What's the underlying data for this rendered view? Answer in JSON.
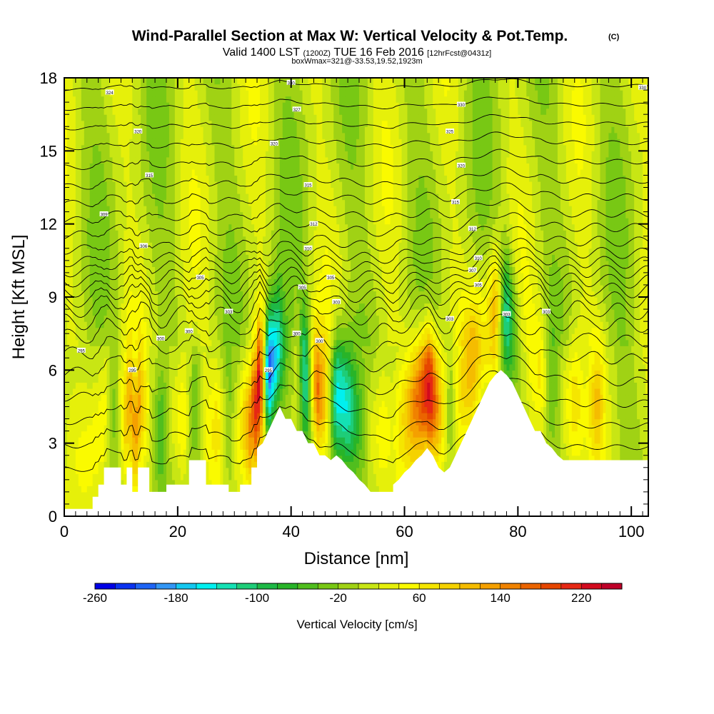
{
  "chart_data": {
    "type": "heatmap",
    "title": "Wind-Parallel Section at Max W: Vertical Velocity & Pot.Temp.",
    "title_mark": "(C)",
    "subtitle": {
      "valid_prefix": "Valid 1400 LST",
      "utc": "(1200Z)",
      "date": "TUE 16 Feb 2016",
      "forecast": "[12hrFcst@0431z]"
    },
    "box_label": "boxWmax=321@-33.53,19.52,1923m",
    "xlabel": "Distance [nm]",
    "ylabel": "Height [Kft MSL]",
    "xlim": [
      0,
      103
    ],
    "ylim": [
      0,
      18
    ],
    "x_ticks": [
      0,
      20,
      40,
      60,
      80,
      100
    ],
    "y_ticks": [
      0,
      3,
      6,
      9,
      12,
      15,
      18
    ],
    "colorbar": {
      "label": "Vertical Velocity [cm/s]",
      "min": -260,
      "max": 260,
      "step": 20,
      "tick_labels": [
        "-260",
        "-180",
        "-100",
        "-20",
        "60",
        "140",
        "220"
      ],
      "tick_values": [
        -260,
        -180,
        -100,
        -20,
        60,
        140,
        220
      ],
      "colors": [
        "#0000e6",
        "#0a32f0",
        "#1e64f5",
        "#3296f5",
        "#14c8f0",
        "#00f0f0",
        "#14e1b4",
        "#1ecd78",
        "#1eb946",
        "#28b428",
        "#50be1e",
        "#78c814",
        "#a0d214",
        "#c8e614",
        "#e6f00a",
        "#fafa00",
        "#f5e600",
        "#f5d200",
        "#f5bc00",
        "#f5a000",
        "#f08200",
        "#eb6400",
        "#e64600",
        "#e62814",
        "#d20a1e",
        "#be0028"
      ]
    },
    "terrain": [
      [
        0,
        0.3
      ],
      [
        5,
        0.3
      ],
      [
        5,
        0.8
      ],
      [
        6,
        0.8
      ],
      [
        6,
        1.3
      ],
      [
        7,
        1.3
      ],
      [
        7,
        2
      ],
      [
        10,
        2
      ],
      [
        10,
        1.3
      ],
      [
        11,
        1.3
      ],
      [
        11,
        2
      ],
      [
        12,
        2
      ],
      [
        12,
        1.0
      ],
      [
        13,
        1.0
      ],
      [
        13,
        2
      ],
      [
        15,
        2
      ],
      [
        15,
        1.0
      ],
      [
        18,
        1.0
      ],
      [
        18,
        1.3
      ],
      [
        22,
        1.3
      ],
      [
        22,
        2.3
      ],
      [
        25,
        2.3
      ],
      [
        25,
        1.3
      ],
      [
        29,
        1.3
      ],
      [
        29,
        1.0
      ],
      [
        31,
        1.0
      ],
      [
        31,
        1.3
      ],
      [
        33,
        1.3
      ],
      [
        33,
        2
      ],
      [
        34,
        2
      ],
      [
        34,
        2.8
      ],
      [
        35,
        3
      ],
      [
        36,
        3.5
      ],
      [
        37,
        4
      ],
      [
        38,
        4.5
      ],
      [
        39,
        4
      ],
      [
        40,
        4
      ],
      [
        41,
        3.5
      ],
      [
        42,
        3.5
      ],
      [
        43,
        3
      ],
      [
        44,
        3
      ],
      [
        45,
        2.5
      ],
      [
        46,
        2.5
      ],
      [
        47,
        2.3
      ],
      [
        48,
        2.5
      ],
      [
        49,
        2.3
      ],
      [
        50,
        2
      ],
      [
        51,
        1.8
      ],
      [
        52,
        1.5
      ],
      [
        53,
        1.3
      ],
      [
        54,
        1.0
      ],
      [
        58,
        1.0
      ],
      [
        58,
        1.3
      ],
      [
        59,
        1.5
      ],
      [
        60,
        1.8
      ],
      [
        61,
        2
      ],
      [
        62,
        2.3
      ],
      [
        63,
        2.5
      ],
      [
        64,
        2.8
      ],
      [
        65,
        2.5
      ],
      [
        66,
        2
      ],
      [
        67,
        1.8
      ],
      [
        68,
        2
      ],
      [
        69,
        2.5
      ],
      [
        70,
        3
      ],
      [
        71,
        3.5
      ],
      [
        72,
        4
      ],
      [
        73,
        4.5
      ],
      [
        74,
        5
      ],
      [
        75,
        5.5
      ],
      [
        76,
        5.8
      ],
      [
        77,
        6
      ],
      [
        78,
        5.8
      ],
      [
        79,
        5.5
      ],
      [
        80,
        5
      ],
      [
        81,
        4.5
      ],
      [
        82,
        4
      ],
      [
        83,
        3.5
      ],
      [
        84,
        3.5
      ],
      [
        85,
        3
      ],
      [
        86,
        2.8
      ],
      [
        87,
        2.5
      ],
      [
        88,
        2.3
      ],
      [
        103,
        2.3
      ]
    ],
    "columns": [
      {
        "x": 0,
        "w": 0
      },
      {
        "x": 4,
        "w": 20
      },
      {
        "x": 7,
        "w": 50
      },
      {
        "x": 9,
        "w": -40
      },
      {
        "x": 11,
        "w": 90
      },
      {
        "x": 13,
        "w": 110
      },
      {
        "x": 15,
        "w": 10
      },
      {
        "x": 17,
        "w": -60
      },
      {
        "x": 19,
        "w": 40
      },
      {
        "x": 21,
        "w": 80
      },
      {
        "x": 23,
        "w": -50
      },
      {
        "x": 25,
        "w": 30
      },
      {
        "x": 27,
        "w": 70
      },
      {
        "x": 29,
        "w": -20
      },
      {
        "x": 31,
        "w": 60
      },
      {
        "x": 33,
        "w": 150
      },
      {
        "x": 34.5,
        "w": 230
      },
      {
        "x": 36,
        "w": -250
      },
      {
        "x": 37.5,
        "w": -180
      },
      {
        "x": 39,
        "w": -60
      },
      {
        "x": 41,
        "w": 20
      },
      {
        "x": 42.5,
        "w": -150
      },
      {
        "x": 44.5,
        "w": 160
      },
      {
        "x": 46,
        "w": 90
      },
      {
        "x": 48,
        "w": -170
      },
      {
        "x": 50,
        "w": -140
      },
      {
        "x": 52,
        "w": -40
      },
      {
        "x": 54,
        "w": 40
      },
      {
        "x": 56,
        "w": 60
      },
      {
        "x": 58,
        "w": 20
      },
      {
        "x": 60,
        "w": 70
      },
      {
        "x": 62,
        "w": 150
      },
      {
        "x": 64.5,
        "w": 240
      },
      {
        "x": 66,
        "w": 120
      },
      {
        "x": 68,
        "w": -40
      },
      {
        "x": 70,
        "w": 50
      },
      {
        "x": 72,
        "w": 100
      },
      {
        "x": 74,
        "w": 60
      },
      {
        "x": 76,
        "w": 130
      },
      {
        "x": 78,
        "w": -150
      },
      {
        "x": 80,
        "w": -40
      },
      {
        "x": 82,
        "w": 30
      },
      {
        "x": 84,
        "w": 70
      },
      {
        "x": 86,
        "w": -30
      },
      {
        "x": 88,
        "w": 40
      },
      {
        "x": 90,
        "w": 80
      },
      {
        "x": 92,
        "w": 20
      },
      {
        "x": 94,
        "w": 90
      },
      {
        "x": 96,
        "w": 10
      },
      {
        "x": 99,
        "w": -20
      },
      {
        "x": 103,
        "w": 0
      }
    ],
    "isentrope_levels": [
      1.8,
      2.8,
      3.8,
      4.8,
      5.8,
      6.6,
      7.3,
      7.9,
      8.4,
      8.8,
      9.2,
      9.6,
      10.0,
      10.4,
      10.9,
      11.5,
      12.1,
      12.8,
      13.5,
      14.3,
      15.1,
      15.9,
      16.7,
      17.5
    ],
    "isentrope_labels": [
      {
        "x": 7,
        "y": 12.4,
        "text": "309"
      },
      {
        "x": 14,
        "y": 11.1,
        "text": "306"
      },
      {
        "x": 3,
        "y": 6.8,
        "text": "295"
      },
      {
        "x": 12,
        "y": 6.0,
        "text": "295"
      },
      {
        "x": 17,
        "y": 7.3,
        "text": "300"
      },
      {
        "x": 22,
        "y": 7.6,
        "text": "300"
      },
      {
        "x": 24,
        "y": 9.8,
        "text": "305"
      },
      {
        "x": 29,
        "y": 8.4,
        "text": "303"
      },
      {
        "x": 15,
        "y": 14.0,
        "text": "315"
      },
      {
        "x": 13,
        "y": 15.8,
        "text": "320"
      },
      {
        "x": 8,
        "y": 17.4,
        "text": "324"
      },
      {
        "x": 37,
        "y": 15.3,
        "text": "320"
      },
      {
        "x": 41,
        "y": 16.7,
        "text": "327"
      },
      {
        "x": 40,
        "y": 17.8,
        "text": "330"
      },
      {
        "x": 43,
        "y": 13.6,
        "text": "315"
      },
      {
        "x": 44,
        "y": 12.0,
        "text": "312"
      },
      {
        "x": 43,
        "y": 11.0,
        "text": "310"
      },
      {
        "x": 47,
        "y": 9.8,
        "text": "305"
      },
      {
        "x": 42,
        "y": 9.4,
        "text": "305"
      },
      {
        "x": 48,
        "y": 8.8,
        "text": "303"
      },
      {
        "x": 41,
        "y": 7.5,
        "text": "300"
      },
      {
        "x": 45,
        "y": 7.2,
        "text": "300"
      },
      {
        "x": 36,
        "y": 6.0,
        "text": "295"
      },
      {
        "x": 70,
        "y": 16.9,
        "text": "330"
      },
      {
        "x": 68,
        "y": 15.8,
        "text": "325"
      },
      {
        "x": 70,
        "y": 14.4,
        "text": "320"
      },
      {
        "x": 69,
        "y": 12.9,
        "text": "315"
      },
      {
        "x": 72,
        "y": 11.8,
        "text": "312"
      },
      {
        "x": 73,
        "y": 10.6,
        "text": "310"
      },
      {
        "x": 72,
        "y": 10.1,
        "text": "307"
      },
      {
        "x": 73,
        "y": 9.5,
        "text": "305"
      },
      {
        "x": 68,
        "y": 8.1,
        "text": "303"
      },
      {
        "x": 78,
        "y": 8.3,
        "text": "303"
      },
      {
        "x": 85,
        "y": 8.4,
        "text": "303"
      },
      {
        "x": 102,
        "y": 17.6,
        "text": "330"
      }
    ]
  }
}
